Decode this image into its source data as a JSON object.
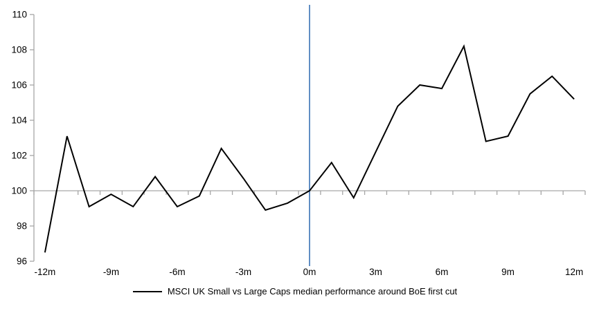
{
  "chart_data": {
    "type": "line",
    "title": "",
    "xlabel": "",
    "ylabel": "",
    "x_months": [
      -12,
      -11,
      -10,
      -9,
      -8,
      -7,
      -6,
      -5,
      -4,
      -3,
      -2,
      -1,
      0,
      1,
      2,
      3,
      4,
      5,
      6,
      7,
      8,
      9,
      10,
      11,
      12
    ],
    "series": [
      {
        "name": "MSCI UK Small vs Large Caps median performance around BoE first cut",
        "color": "#000000",
        "values": [
          96.5,
          103.1,
          99.1,
          99.8,
          99.1,
          100.8,
          99.1,
          99.7,
          102.4,
          100.7,
          98.9,
          99.3,
          100.0,
          101.6,
          99.6,
          102.2,
          104.8,
          106.0,
          105.8,
          108.2,
          102.8,
          103.1,
          105.5,
          106.5,
          105.2
        ]
      }
    ],
    "ylim": [
      96,
      110
    ],
    "yticks": [
      96,
      98,
      100,
      102,
      104,
      106,
      108,
      110
    ],
    "xtick_labels": [
      "-12m",
      "-9m",
      "-6m",
      "-3m",
      "0m",
      "3m",
      "6m",
      "9m",
      "12m"
    ],
    "xtick_label_every_months": 3,
    "baseline_value": 100,
    "event_line_x_month": 0,
    "grid": "single-line-at-100",
    "legend_position": "bottom-center",
    "colors": {
      "series_line": "#000000",
      "event_line": "#4f81bd",
      "baseline_line": "#a6a6a6",
      "axis_line": "#a6a6a6",
      "tick_mark": "#a6a6a6",
      "label_text": "#000000"
    }
  },
  "legend": {
    "label": "MSCI UK Small vs Large Caps median performance around BoE first cut"
  }
}
